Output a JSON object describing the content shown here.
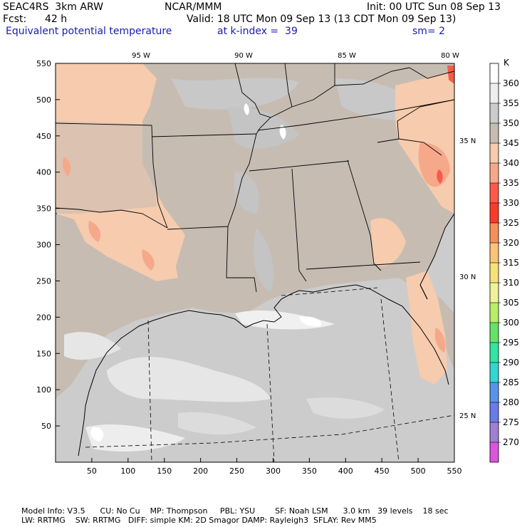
{
  "header": {
    "model": "SEAC4RS  3km ARW",
    "org": "NCAR/MMM",
    "init": "Init: 00 UTC Sun 08 Sep 13",
    "fcst_label": "Fcst:",
    "fcst_value": "42 h",
    "valid": "Valid: 18 UTC Mon 09 Sep 13 (13 CDT Mon 09 Sep 13)",
    "field": "Equivalent potential temperature",
    "level": "at k-index =  39",
    "smooth": "sm= 2"
  },
  "map": {
    "top_lon_labels": [
      "95 W",
      "90 W",
      "85 W",
      "80 W"
    ],
    "right_lat_labels": [
      "35 N",
      "30 N",
      "25 N"
    ],
    "x_ticks": [
      "50",
      "100",
      "150",
      "200",
      "250",
      "300",
      "350",
      "400",
      "450",
      "500",
      "550"
    ],
    "y_ticks": [
      "550",
      "500",
      "450",
      "400",
      "350",
      "300",
      "250",
      "200",
      "150",
      "100",
      "50"
    ]
  },
  "colorbar": {
    "unit": "K",
    "labels": [
      "360",
      "355",
      "350",
      "345",
      "340",
      "335",
      "330",
      "325",
      "320",
      "315",
      "310",
      "305",
      "300",
      "295",
      "290",
      "285",
      "280",
      "275",
      "270"
    ],
    "colors": [
      "#ffffff",
      "#eeeeee",
      "#cccccc",
      "#c6bcb2",
      "#f6cbae",
      "#f6a88a",
      "#fb5a4a",
      "#fb3b2a",
      "#f5905a",
      "#f9c478",
      "#f9e178",
      "#eef39a",
      "#b9ee66",
      "#66e26a",
      "#33e4a4",
      "#33d6d0",
      "#5a94e8",
      "#6a7ce8",
      "#a080d0",
      "#dd55dd"
    ]
  },
  "footer": {
    "line1": "Model Info: V3.5      CU: No Cu    MP: Thompson     PBL: YSU        SF: Noah LSM      3.0 km   39 levels    18 sec",
    "line2": "LW: RRTMG    SW: RRTMG   DIFF: simple KM: 2D Smagor DAMP: Rayleigh3  SFLAY: Rev MM5"
  }
}
